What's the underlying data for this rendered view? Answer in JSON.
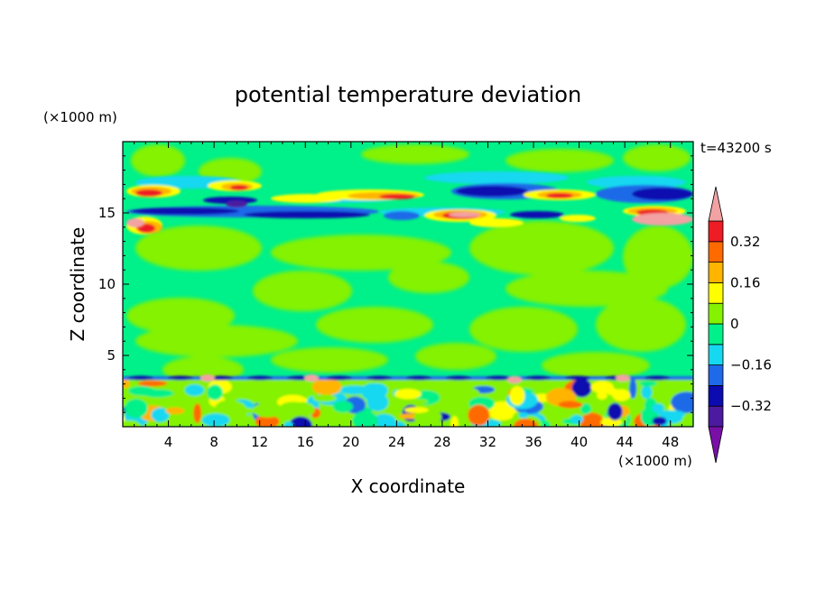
{
  "chart_data": {
    "type": "heatmap",
    "title": "potential temperature deviation",
    "xlabel": "X coordinate",
    "ylabel": "Z coordinate",
    "x_unit": "(×1000 m)",
    "y_unit": "(×1000 m)",
    "time_label": "t=43200 s",
    "xlim": [
      0,
      50
    ],
    "ylim": [
      0,
      20
    ],
    "x_ticks": [
      4,
      8,
      12,
      16,
      20,
      24,
      28,
      32,
      36,
      40,
      44,
      48
    ],
    "y_ticks": [
      5,
      10,
      15
    ],
    "colorbar": {
      "levels": [
        -0.4,
        -0.32,
        -0.24,
        -0.16,
        -0.08,
        0,
        0.08,
        0.16,
        0.24,
        0.32,
        0.4
      ],
      "labeled": [
        0.32,
        0.16,
        0,
        -0.16,
        -0.32
      ],
      "labels": [
        "0.32",
        "0.16",
        "0",
        "−0.16",
        "−0.32"
      ],
      "colors": [
        "#7a0fa8",
        "#4b1aa0",
        "#0b0bb0",
        "#1e6ae8",
        "#16d8f0",
        "#00f08a",
        "#84f200",
        "#ffff00",
        "#ffb400",
        "#ff6a00",
        "#ee1c24",
        "#f2a2a2"
      ]
    },
    "features": [
      {
        "z_range": [
          0,
          3.5
        ],
        "description": "convective boundary layer with alternating positive and negative cells"
      },
      {
        "z": 3.5,
        "value": -0.32,
        "description": "thin negative layer at inversion"
      },
      {
        "z": 14.8,
        "value": -0.32,
        "description": "strong negative band near tropopause"
      },
      {
        "z": 16.2,
        "value": 0.32,
        "description": "positive cells above tropopause"
      },
      {
        "z_range": [
          4,
          13
        ],
        "value": 0.0,
        "description": "near-neutral free troposphere"
      }
    ]
  }
}
